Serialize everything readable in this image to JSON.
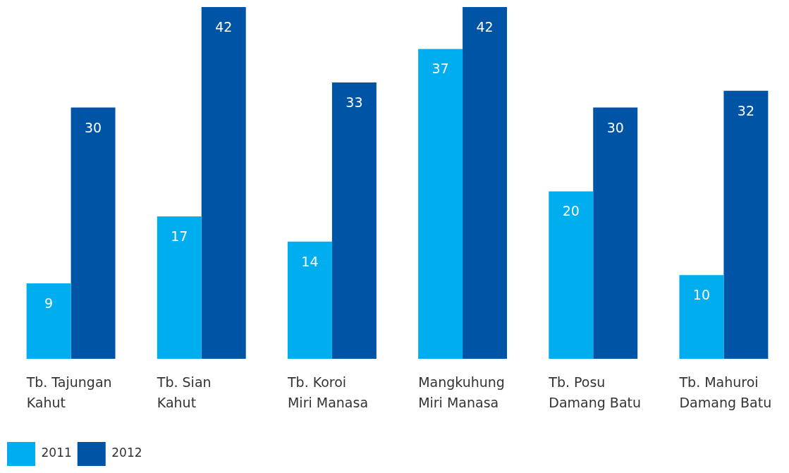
{
  "chart_data": {
    "type": "bar",
    "categories": [
      "Tb. Tajungan\nKahut",
      "Tb. Sian\nKahut",
      "Tb. Koroi\nMiri Manasa",
      "Mangkuhung\nMiri Manasa",
      "Tb. Posu\nDamang Batu",
      "Tb. Mahuroi\nDamang Batu"
    ],
    "series": [
      {
        "name": "2011",
        "color": "#00aeef",
        "values": [
          9,
          17,
          14,
          37,
          20,
          10
        ]
      },
      {
        "name": "2012",
        "color": "#0054a6",
        "values": [
          30,
          42,
          33,
          42,
          30,
          32
        ]
      }
    ],
    "ylim": [
      0,
      42
    ],
    "data_labels": true,
    "tick_labels": "x",
    "grid": false,
    "legend": "bottom left"
  }
}
